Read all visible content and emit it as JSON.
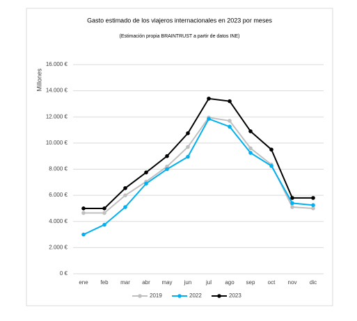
{
  "chart_data": {
    "type": "line",
    "title": "Gasto estimado de los viajeros internacionales en 2023 por meses",
    "subtitle": "(Estimación propia BRAINTRUST a partir de datos INE)",
    "y_label": "Millones",
    "categories": [
      "ene",
      "feb",
      "mar",
      "abr",
      "may",
      "jun",
      "jul",
      "ago",
      "sep",
      "oct",
      "nov",
      "dic"
    ],
    "series": [
      {
        "name": "2019",
        "color": "#bfbfbf",
        "values": [
          4650,
          4650,
          6000,
          7050,
          8200,
          9700,
          11950,
          11700,
          9600,
          8350,
          5100,
          5000
        ]
      },
      {
        "name": "2022",
        "color": "#00b0f0",
        "values": [
          3000,
          3750,
          5100,
          6900,
          8000,
          8950,
          11850,
          11250,
          9250,
          8250,
          5400,
          5250
        ]
      },
      {
        "name": "2023",
        "color": "#000000",
        "values": [
          5000,
          5000,
          6550,
          7750,
          9000,
          10750,
          13400,
          13200,
          10900,
          9500,
          5800,
          5800
        ]
      }
    ],
    "ylim": [
      0,
      16000
    ],
    "yticks": [
      {
        "value": 0,
        "label": "0 €"
      },
      {
        "value": 2000,
        "label": "2.000 €"
      },
      {
        "value": 4000,
        "label": "4.000 €"
      },
      {
        "value": 6000,
        "label": "6.000 €"
      },
      {
        "value": 8000,
        "label": "8.000 €"
      },
      {
        "value": 10000,
        "label": "10.000 €"
      },
      {
        "value": 12000,
        "label": "12.000 €"
      },
      {
        "value": 14000,
        "label": "14.000 €"
      },
      {
        "value": 16000,
        "label": "16.000 €"
      }
    ],
    "grid": true,
    "legend": "bottom"
  }
}
